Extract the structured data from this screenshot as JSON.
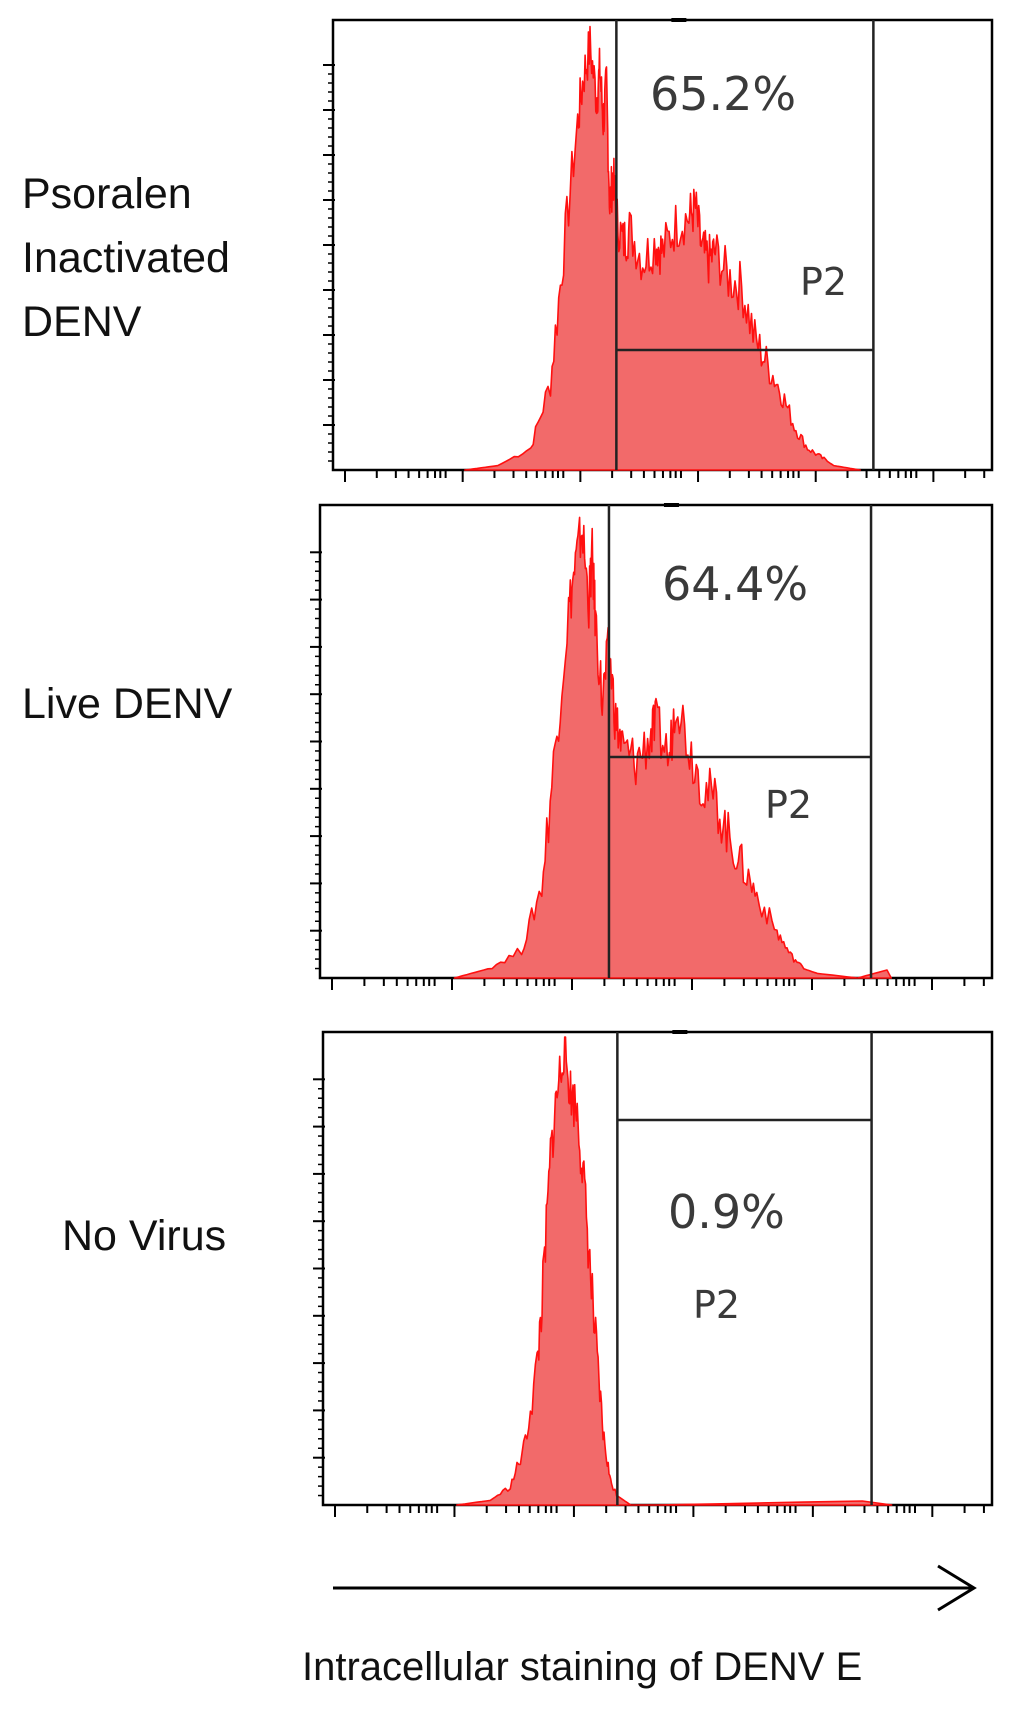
{
  "chart_data": {
    "type": "histogram",
    "xlabel": "Intracellular staining of DENV E",
    "x_scale": "log",
    "panels": [
      {
        "label_lines": [
          "Psoralen",
          "Inactivated",
          "DENV"
        ],
        "gate_name": "P2",
        "gate_percent": "65.2%",
        "gate_range": [
          0.43,
          0.82
        ],
        "histogram_x": [
          0.2,
          0.25,
          0.3,
          0.33,
          0.35,
          0.37,
          0.38,
          0.39,
          0.4,
          0.405,
          0.41,
          0.415,
          0.42,
          0.425,
          0.43,
          0.44,
          0.45,
          0.47,
          0.49,
          0.5,
          0.52,
          0.54,
          0.55,
          0.56,
          0.57,
          0.58,
          0.6,
          0.62,
          0.64,
          0.66,
          0.68,
          0.7,
          0.72,
          0.74,
          0.76,
          0.8
        ],
        "histogram_y": [
          0,
          0.01,
          0.05,
          0.2,
          0.5,
          0.78,
          0.9,
          0.97,
          0.85,
          0.92,
          0.8,
          0.88,
          0.6,
          0.68,
          0.58,
          0.52,
          0.55,
          0.48,
          0.52,
          0.5,
          0.56,
          0.58,
          0.6,
          0.5,
          0.48,
          0.5,
          0.44,
          0.42,
          0.3,
          0.24,
          0.18,
          0.1,
          0.05,
          0.03,
          0.01,
          0
        ]
      },
      {
        "label_lines": [
          "Live DENV"
        ],
        "gate_name": "P2",
        "gate_percent": "64.4%",
        "gate_range": [
          0.43,
          0.82
        ],
        "histogram_x": [
          0.2,
          0.25,
          0.3,
          0.33,
          0.35,
          0.37,
          0.38,
          0.39,
          0.4,
          0.405,
          0.41,
          0.42,
          0.43,
          0.44,
          0.45,
          0.47,
          0.49,
          0.5,
          0.52,
          0.53,
          0.55,
          0.57,
          0.59,
          0.61,
          0.63,
          0.65,
          0.68,
          0.7,
          0.72,
          0.74,
          0.8,
          0.85
        ],
        "histogram_y": [
          0,
          0.02,
          0.06,
          0.2,
          0.5,
          0.8,
          0.9,
          0.98,
          0.82,
          0.92,
          0.78,
          0.6,
          0.72,
          0.56,
          0.5,
          0.47,
          0.52,
          0.55,
          0.48,
          0.62,
          0.5,
          0.42,
          0.38,
          0.3,
          0.24,
          0.18,
          0.1,
          0.05,
          0.02,
          0.01,
          0,
          0.02
        ]
      },
      {
        "label_lines": [
          "No Virus"
        ],
        "gate_name": "P2",
        "gate_percent": "0.9%",
        "gate_range": [
          0.44,
          0.82
        ],
        "histogram_x": [
          0.2,
          0.25,
          0.28,
          0.3,
          0.32,
          0.33,
          0.34,
          0.35,
          0.36,
          0.37,
          0.38,
          0.39,
          0.4,
          0.41,
          0.42,
          0.43,
          0.44,
          0.46,
          0.5,
          0.85
        ],
        "histogram_y": [
          0,
          0.01,
          0.04,
          0.12,
          0.3,
          0.5,
          0.76,
          0.9,
          1.0,
          0.9,
          0.86,
          0.7,
          0.5,
          0.3,
          0.14,
          0.05,
          0.02,
          0,
          0,
          0.01
        ]
      }
    ]
  }
}
